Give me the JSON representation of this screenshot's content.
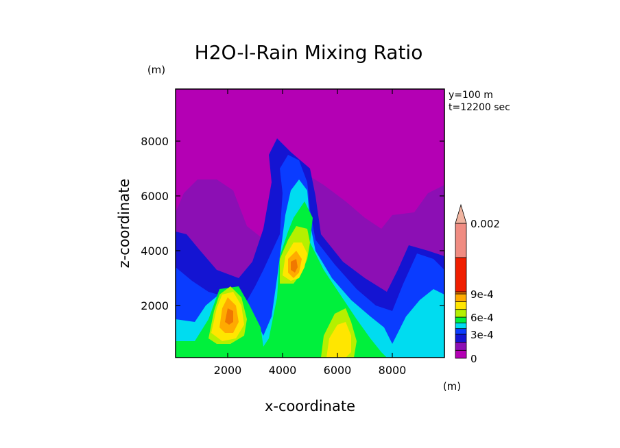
{
  "chart_data": {
    "type": "heatmap",
    "title": "H2O-l-Rain Mixing Ratio",
    "xlabel": "x-coordinate",
    "ylabel": "z-coordinate",
    "x_unit": "(m)",
    "y_unit": "(m)",
    "info": [
      "y=100 m",
      "t=12200 sec"
    ],
    "xlim": [
      100,
      9900
    ],
    "ylim": [
      100,
      9900
    ],
    "x_ticks": [
      2000,
      4000,
      6000,
      8000
    ],
    "y_ticks": [
      2000,
      4000,
      6000,
      8000
    ],
    "x_tick_labels": [
      "2000",
      "4000",
      "6000",
      "8000"
    ],
    "y_tick_labels": [
      "2000",
      "4000",
      "6000",
      "8000"
    ],
    "colorbar": {
      "labels": [
        {
          "value": 0,
          "text": "0"
        },
        {
          "value": 0.0003,
          "text": "3e-4"
        },
        {
          "value": 0.0006,
          "text": "6e-4"
        },
        {
          "value": 0.0009,
          "text": "9e-4"
        },
        {
          "value": 0.002,
          "text": "0.002"
        }
      ],
      "bands": [
        {
          "low": 0,
          "high": 0.0001,
          "color": "#b400b4"
        },
        {
          "low": 0.0001,
          "high": 0.0002,
          "color": "#8c0fb4"
        },
        {
          "low": 0.0002,
          "high": 0.0003,
          "color": "#1414d2"
        },
        {
          "low": 0.0003,
          "high": 0.0004,
          "color": "#0a3cff"
        },
        {
          "low": 0.0004,
          "high": 0.0005,
          "color": "#00dcf0"
        },
        {
          "low": 0.0005,
          "high": 0.0006,
          "color": "#00f03c"
        },
        {
          "low": 0.0006,
          "high": 0.0007,
          "color": "#b4f000"
        },
        {
          "low": 0.0007,
          "high": 0.0008,
          "color": "#ffe600"
        },
        {
          "low": 0.0008,
          "high": 0.0009,
          "color": "#ffaa00"
        },
        {
          "low": 0.0009,
          "high": 0.001,
          "color": "#f07800"
        },
        {
          "low": 0.001,
          "high": 0.0015,
          "color": "#f01e00"
        },
        {
          "low": 0.0015,
          "high": 0.002,
          "color": "#f08c82"
        }
      ],
      "over_color": "#f0b4a0"
    },
    "regions": [
      {
        "level": 0,
        "color": "#b400b4",
        "polygon": [
          [
            100,
            9900
          ],
          [
            9900,
            9900
          ],
          [
            9900,
            100
          ],
          [
            100,
            100
          ]
        ]
      },
      {
        "level": 1,
        "color": "#8c0fb4",
        "polygon": [
          [
            100,
            100
          ],
          [
            100,
            5400
          ],
          [
            400,
            6100
          ],
          [
            900,
            6600
          ],
          [
            1600,
            6600
          ],
          [
            2200,
            6200
          ],
          [
            2700,
            4900
          ],
          [
            3200,
            4500
          ],
          [
            3600,
            4500
          ],
          [
            3900,
            5300
          ],
          [
            4300,
            6700
          ],
          [
            4700,
            6900
          ],
          [
            5500,
            6400
          ],
          [
            6300,
            5800
          ],
          [
            7000,
            5200
          ],
          [
            7600,
            4800
          ],
          [
            8000,
            5300
          ],
          [
            8800,
            5400
          ],
          [
            9300,
            6100
          ],
          [
            9900,
            6400
          ],
          [
            9900,
            100
          ]
        ]
      },
      {
        "level": 2,
        "color": "#1414d2",
        "polygon": [
          [
            100,
            100
          ],
          [
            100,
            4700
          ],
          [
            500,
            4600
          ],
          [
            1000,
            4000
          ],
          [
            1600,
            3300
          ],
          [
            2400,
            3000
          ],
          [
            2900,
            3600
          ],
          [
            3300,
            4800
          ],
          [
            3600,
            6500
          ],
          [
            3500,
            7500
          ],
          [
            3800,
            8100
          ],
          [
            4300,
            7600
          ],
          [
            5000,
            7000
          ],
          [
            5200,
            6000
          ],
          [
            5400,
            4600
          ],
          [
            6200,
            3600
          ],
          [
            7000,
            3000
          ],
          [
            7800,
            2500
          ],
          [
            8200,
            3300
          ],
          [
            8600,
            4200
          ],
          [
            9300,
            4000
          ],
          [
            9900,
            3800
          ],
          [
            9900,
            100
          ]
        ]
      },
      {
        "level": 3,
        "color": "#0a3cff",
        "polygon": [
          [
            100,
            100
          ],
          [
            100,
            3400
          ],
          [
            700,
            2900
          ],
          [
            1300,
            2500
          ],
          [
            2000,
            2300
          ],
          [
            2600,
            2000
          ],
          [
            3000,
            2700
          ],
          [
            3300,
            3300
          ],
          [
            3900,
            4600
          ],
          [
            4000,
            6100
          ],
          [
            3900,
            7000
          ],
          [
            4200,
            7500
          ],
          [
            4600,
            7300
          ],
          [
            4900,
            6500
          ],
          [
            5000,
            5500
          ],
          [
            5200,
            4400
          ],
          [
            5900,
            3500
          ],
          [
            6700,
            2600
          ],
          [
            7400,
            2000
          ],
          [
            8000,
            1800
          ],
          [
            8400,
            2800
          ],
          [
            8900,
            3900
          ],
          [
            9500,
            3700
          ],
          [
            9900,
            3300
          ],
          [
            9900,
            100
          ]
        ]
      },
      {
        "level": 4,
        "color": "#00dcf0",
        "polygon": [
          [
            100,
            100
          ],
          [
            100,
            1500
          ],
          [
            800,
            1400
          ],
          [
            1200,
            2000
          ],
          [
            1800,
            2500
          ],
          [
            2500,
            2400
          ],
          [
            2900,
            1700
          ],
          [
            3300,
            900
          ],
          [
            3600,
            1600
          ],
          [
            3800,
            3000
          ],
          [
            4100,
            5300
          ],
          [
            4300,
            6200
          ],
          [
            4600,
            6600
          ],
          [
            4900,
            6200
          ],
          [
            5000,
            5000
          ],
          [
            5200,
            4000
          ],
          [
            5800,
            3000
          ],
          [
            6500,
            2200
          ],
          [
            7200,
            1600
          ],
          [
            7700,
            1200
          ],
          [
            8000,
            600
          ],
          [
            8500,
            1600
          ],
          [
            9000,
            2200
          ],
          [
            9500,
            2600
          ],
          [
            9900,
            2400
          ],
          [
            9900,
            100
          ]
        ]
      },
      {
        "level": 5,
        "color": "#00f03c",
        "polygon": [
          [
            100,
            100
          ],
          [
            100,
            700
          ],
          [
            800,
            700
          ],
          [
            1300,
            1500
          ],
          [
            1700,
            2600
          ],
          [
            2400,
            2700
          ],
          [
            2800,
            2000
          ],
          [
            3200,
            1200
          ],
          [
            3300,
            500
          ],
          [
            3500,
            800
          ],
          [
            3800,
            2300
          ],
          [
            3900,
            3800
          ],
          [
            4200,
            4700
          ],
          [
            4400,
            5200
          ],
          [
            4800,
            5800
          ],
          [
            5100,
            5200
          ],
          [
            5000,
            4300
          ],
          [
            5500,
            3300
          ],
          [
            6100,
            2400
          ],
          [
            6700,
            1500
          ],
          [
            7200,
            800
          ],
          [
            7600,
            300
          ],
          [
            7800,
            100
          ]
        ]
      },
      {
        "level": 6,
        "color": "#b4f000",
        "polygon": [
          [
            1300,
            800
          ],
          [
            1500,
            1800
          ],
          [
            1700,
            2400
          ],
          [
            2100,
            2700
          ],
          [
            2500,
            2300
          ],
          [
            2700,
            1500
          ],
          [
            2600,
            900
          ],
          [
            2100,
            600
          ],
          [
            1600,
            600
          ]
        ]
      },
      {
        "level": 6,
        "color": "#b4f000",
        "polygon": [
          [
            3900,
            2800
          ],
          [
            3900,
            3700
          ],
          [
            4200,
            4400
          ],
          [
            4500,
            4900
          ],
          [
            4900,
            4800
          ],
          [
            5000,
            4300
          ],
          [
            4900,
            3700
          ],
          [
            4700,
            3200
          ],
          [
            4400,
            2800
          ]
        ]
      },
      {
        "level": 6,
        "color": "#b4f000",
        "polygon": [
          [
            5400,
            100
          ],
          [
            5500,
            900
          ],
          [
            5900,
            1700
          ],
          [
            6300,
            1900
          ],
          [
            6500,
            1400
          ],
          [
            6700,
            700
          ],
          [
            6600,
            100
          ]
        ]
      },
      {
        "level": 7,
        "color": "#ffe600",
        "polygon": [
          [
            1400,
            1000
          ],
          [
            1600,
            1900
          ],
          [
            1800,
            2400
          ],
          [
            2200,
            2500
          ],
          [
            2500,
            2000
          ],
          [
            2600,
            1300
          ],
          [
            2300,
            800
          ],
          [
            1800,
            700
          ]
        ]
      },
      {
        "level": 7,
        "color": "#ffe600",
        "polygon": [
          [
            4000,
            3100
          ],
          [
            4100,
            3800
          ],
          [
            4400,
            4300
          ],
          [
            4700,
            4300
          ],
          [
            4900,
            3900
          ],
          [
            4800,
            3400
          ],
          [
            4600,
            3000
          ],
          [
            4300,
            2900
          ]
        ]
      },
      {
        "level": 7,
        "color": "#ffe600",
        "polygon": [
          [
            5600,
            100
          ],
          [
            5700,
            800
          ],
          [
            6000,
            1300
          ],
          [
            6300,
            1400
          ],
          [
            6500,
            900
          ],
          [
            6500,
            300
          ],
          [
            6300,
            100
          ]
        ]
      },
      {
        "level": 8,
        "color": "#ffaa00",
        "polygon": [
          [
            1700,
            1200
          ],
          [
            1800,
            1900
          ],
          [
            2000,
            2300
          ],
          [
            2300,
            2000
          ],
          [
            2400,
            1400
          ],
          [
            2200,
            1000
          ],
          [
            1900,
            1000
          ]
        ]
      },
      {
        "level": 8,
        "color": "#ffaa00",
        "polygon": [
          [
            4200,
            3200
          ],
          [
            4200,
            3700
          ],
          [
            4500,
            4000
          ],
          [
            4700,
            3700
          ],
          [
            4600,
            3200
          ],
          [
            4400,
            3000
          ]
        ]
      },
      {
        "level": 9,
        "color": "#f07800",
        "polygon": [
          [
            1900,
            1400
          ],
          [
            2000,
            1900
          ],
          [
            2200,
            1800
          ],
          [
            2200,
            1400
          ],
          [
            2050,
            1300
          ]
        ]
      },
      {
        "level": 9,
        "color": "#f07800",
        "polygon": [
          [
            4300,
            3300
          ],
          [
            4300,
            3600
          ],
          [
            4500,
            3700
          ],
          [
            4550,
            3400
          ],
          [
            4450,
            3200
          ]
        ]
      }
    ]
  }
}
